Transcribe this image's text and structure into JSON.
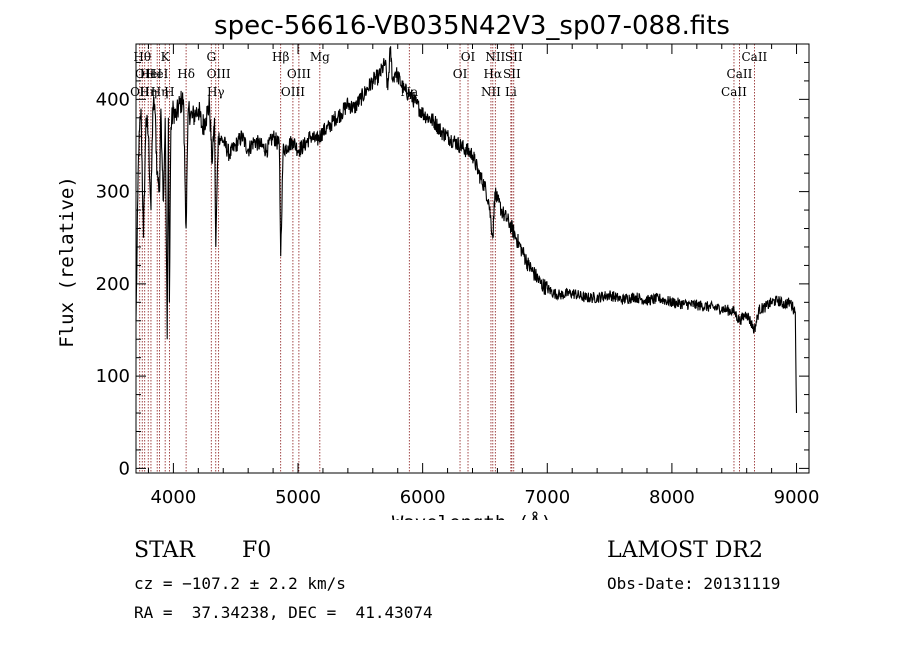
{
  "chart_data": {
    "type": "line",
    "title": "spec-56616-VB035N42V3_sp07-088.fits",
    "xlabel": "Wavelength (Å)",
    "ylabel": "Flux (relative)",
    "xlim": [
      3700,
      9100
    ],
    "ylim": [
      -5,
      460
    ],
    "x_ticks": [
      4000,
      5000,
      6000,
      7000,
      8000,
      9000
    ],
    "y_ticks": [
      0,
      100,
      200,
      300,
      400
    ],
    "grid": false,
    "line_color": "#000000",
    "marker_color": "#8b1a1a",
    "series": [
      {
        "x": [
          3700,
          3720,
          3740,
          3760,
          3780,
          3800,
          3820,
          3835,
          3850,
          3870,
          3889,
          3900,
          3920,
          3934,
          3950,
          3960,
          3968,
          3980,
          4000,
          4020,
          4050,
          4080,
          4102,
          4120,
          4150,
          4180,
          4200,
          4230,
          4260,
          4290,
          4310,
          4330,
          4340,
          4360,
          4400,
          4450,
          4500,
          4550,
          4600,
          4650,
          4700,
          4750,
          4800,
          4850,
          4861,
          4880,
          4920,
          4960,
          5000,
          5050,
          5100,
          5150,
          5200,
          5250,
          5300,
          5350,
          5400,
          5450,
          5500,
          5550,
          5600,
          5650,
          5700,
          5720,
          5740,
          5760,
          5780,
          5800,
          5850,
          5900,
          5950,
          6000,
          6050,
          6100,
          6150,
          6200,
          6250,
          6300,
          6350,
          6400,
          6450,
          6500,
          6530,
          6563,
          6580,
          6600,
          6650,
          6700,
          6750,
          6800,
          6850,
          6900,
          6950,
          7000,
          7050,
          7100,
          7200,
          7300,
          7400,
          7500,
          7600,
          7700,
          7800,
          7900,
          8000,
          8100,
          8200,
          8300,
          8400,
          8500,
          8542,
          8600,
          8662,
          8700,
          8750,
          8800,
          8850,
          8900,
          8950,
          8990,
          9000
        ],
        "y": [
          160,
          340,
          390,
          250,
          380,
          360,
          280,
          390,
          395,
          320,
          300,
          390,
          290,
          380,
          140,
          380,
          180,
          370,
          390,
          380,
          395,
          400,
          260,
          390,
          380,
          385,
          390,
          370,
          380,
          395,
          330,
          380,
          240,
          360,
          355,
          340,
          350,
          360,
          345,
          355,
          350,
          345,
          360,
          350,
          230,
          345,
          350,
          355,
          345,
          350,
          360,
          355,
          365,
          370,
          380,
          385,
          395,
          390,
          400,
          410,
          420,
          425,
          440,
          410,
          455,
          420,
          430,
          425,
          410,
          405,
          395,
          385,
          380,
          375,
          365,
          360,
          355,
          350,
          345,
          340,
          320,
          305,
          290,
          250,
          300,
          290,
          275,
          265,
          250,
          235,
          220,
          210,
          200,
          195,
          190,
          188,
          190,
          185,
          185,
          188,
          183,
          186,
          182,
          184,
          180,
          178,
          177,
          175,
          173,
          170,
          160,
          168,
          150,
          172,
          175,
          180,
          182,
          178,
          180,
          170,
          60
        ]
      }
    ],
    "line_markers": [
      {
        "wl": 3730,
        "label": "OII",
        "row": 2
      },
      {
        "wl": 3750,
        "label": "Hθ",
        "row": 0
      },
      {
        "wl": 3770,
        "label": "OII",
        "row": 1
      },
      {
        "wl": 3798,
        "label": "Hη",
        "row": 2
      },
      {
        "wl": 3820,
        "label": "HeI",
        "row": 1
      },
      {
        "wl": 3870,
        "label": "HeI",
        "row": 1
      },
      {
        "wl": 3889,
        "label": "Hη",
        "row": 2
      },
      {
        "wl": 3934,
        "label": "K",
        "row": 0
      },
      {
        "wl": 3968,
        "label": "H",
        "row": 2
      },
      {
        "wl": 4102,
        "label": "Hδ",
        "row": 1
      },
      {
        "wl": 4304,
        "label": "G",
        "row": 0
      },
      {
        "wl": 4340,
        "label": "Hγ",
        "row": 2
      },
      {
        "wl": 4363,
        "label": "OIII",
        "row": 1
      },
      {
        "wl": 4861,
        "label": "Hβ",
        "row": 0
      },
      {
        "wl": 4959,
        "label": "OIII",
        "row": 2
      },
      {
        "wl": 5007,
        "label": "OIII",
        "row": 1
      },
      {
        "wl": 5175,
        "label": "Mg",
        "row": 0
      },
      {
        "wl": 5893,
        "label": "Na",
        "row": 2
      },
      {
        "wl": 6300,
        "label": "OI",
        "row": 1
      },
      {
        "wl": 6364,
        "label": "OI",
        "row": 0
      },
      {
        "wl": 6548,
        "label": "NII",
        "row": 2
      },
      {
        "wl": 6563,
        "label": "Hα",
        "row": 1
      },
      {
        "wl": 6583,
        "label": "NII",
        "row": 0
      },
      {
        "wl": 6708,
        "label": "Li",
        "row": 2
      },
      {
        "wl": 6716,
        "label": "SII",
        "row": 1
      },
      {
        "wl": 6731,
        "label": "SII",
        "row": 0
      },
      {
        "wl": 8498,
        "label": "CaII",
        "row": 2
      },
      {
        "wl": 8542,
        "label": "CaII",
        "row": 1
      },
      {
        "wl": 8662,
        "label": "CaII",
        "row": 0
      }
    ]
  },
  "info": {
    "class_label": "STAR",
    "subclass_label": "F0",
    "cz": "cz = −107.2 ± 2.2 km/s",
    "radec": "RA =  37.34238, DEC =  41.43074",
    "survey": "LAMOST DR2",
    "obs_date": "Obs-Date: 20131119"
  }
}
